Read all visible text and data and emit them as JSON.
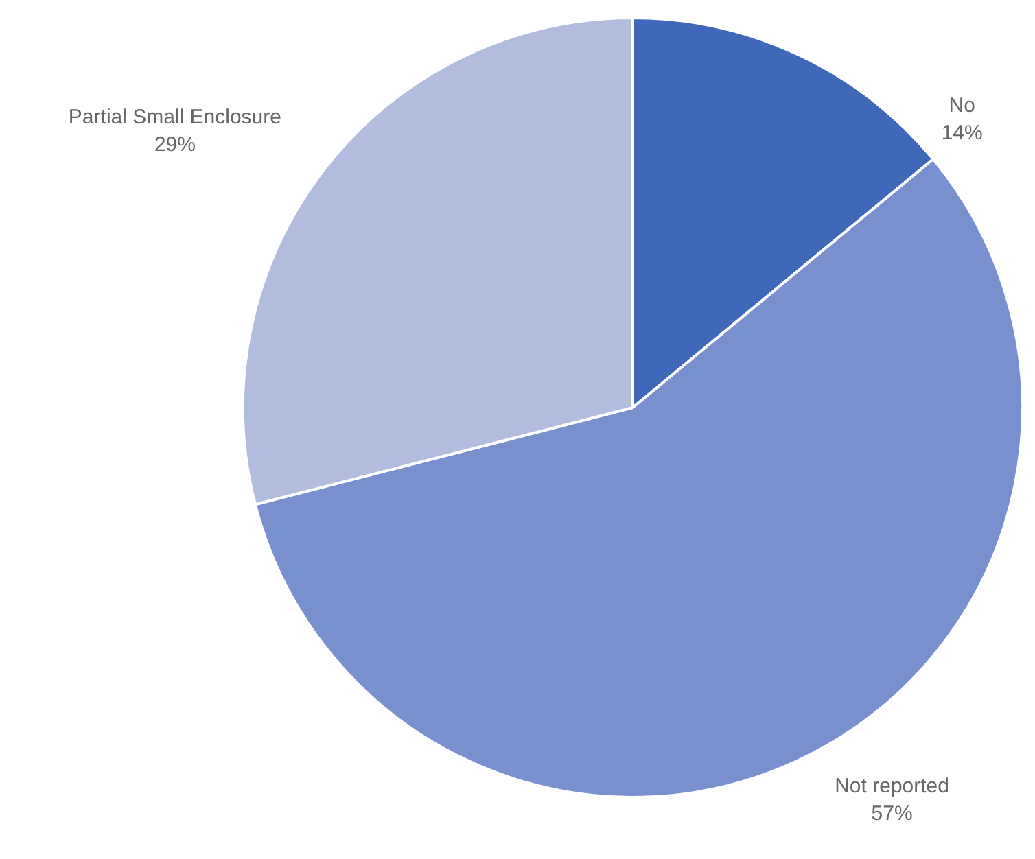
{
  "chart_data": {
    "type": "pie",
    "categories": [
      "No",
      "Not reported",
      "Partial Small Enclosure"
    ],
    "values": [
      14,
      57,
      29
    ],
    "colors": [
      "#3f69b8",
      "#7990cf",
      "#b1bcdf"
    ],
    "value_labels": [
      "14%",
      "57%",
      "29%"
    ],
    "legend": false
  }
}
